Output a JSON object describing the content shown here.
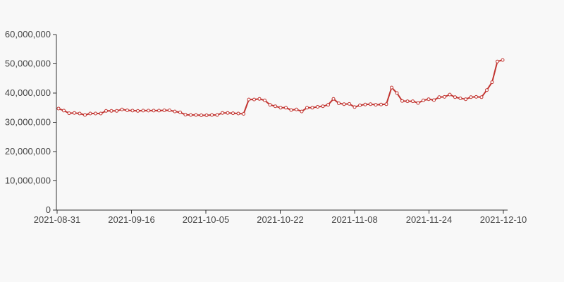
{
  "chart_data": {
    "type": "line",
    "title": "",
    "xlabel": "",
    "ylabel": "",
    "x_tick_labels": [
      "2021-08-31",
      "2021-09-16",
      "2021-10-05",
      "2021-10-22",
      "2021-11-08",
      "2021-11-24",
      "2021-12-10"
    ],
    "y_tick_labels": [
      "0",
      "10,000,000",
      "20,000,000",
      "30,000,000",
      "40,000,000",
      "50,000,000",
      "60,000,000"
    ],
    "ylim": [
      0,
      60000000
    ],
    "grid": false,
    "legend": "none",
    "colors": {
      "line": "#c23531",
      "point_fill": "#ffffff",
      "axis": "#333333",
      "background": "#f8f8f8"
    },
    "series": [
      {
        "values": [
          34700000,
          34000000,
          33100000,
          33200000,
          33000000,
          32500000,
          33000000,
          33000000,
          33000000,
          33900000,
          33900000,
          33900000,
          34400000,
          34100000,
          34000000,
          33900000,
          34000000,
          34000000,
          34000000,
          34000000,
          34100000,
          34100000,
          33700000,
          33400000,
          32600000,
          32500000,
          32500000,
          32400000,
          32400000,
          32500000,
          32500000,
          33200000,
          33200000,
          33100000,
          33000000,
          32900000,
          37800000,
          37800000,
          38000000,
          37500000,
          36000000,
          35500000,
          35000000,
          35000000,
          34200000,
          34400000,
          33700000,
          35000000,
          35000000,
          35300000,
          35500000,
          36000000,
          38000000,
          36500000,
          36200000,
          36300000,
          35200000,
          35800000,
          36100000,
          36200000,
          36000000,
          36100000,
          36200000,
          41900000,
          40000000,
          37300000,
          37200000,
          37200000,
          36600000,
          37500000,
          37900000,
          37600000,
          38600000,
          38700000,
          39500000,
          38600000,
          38200000,
          37900000,
          38600000,
          38700000,
          38600000,
          41000000,
          43700000,
          50800000,
          51300000
        ]
      }
    ]
  }
}
